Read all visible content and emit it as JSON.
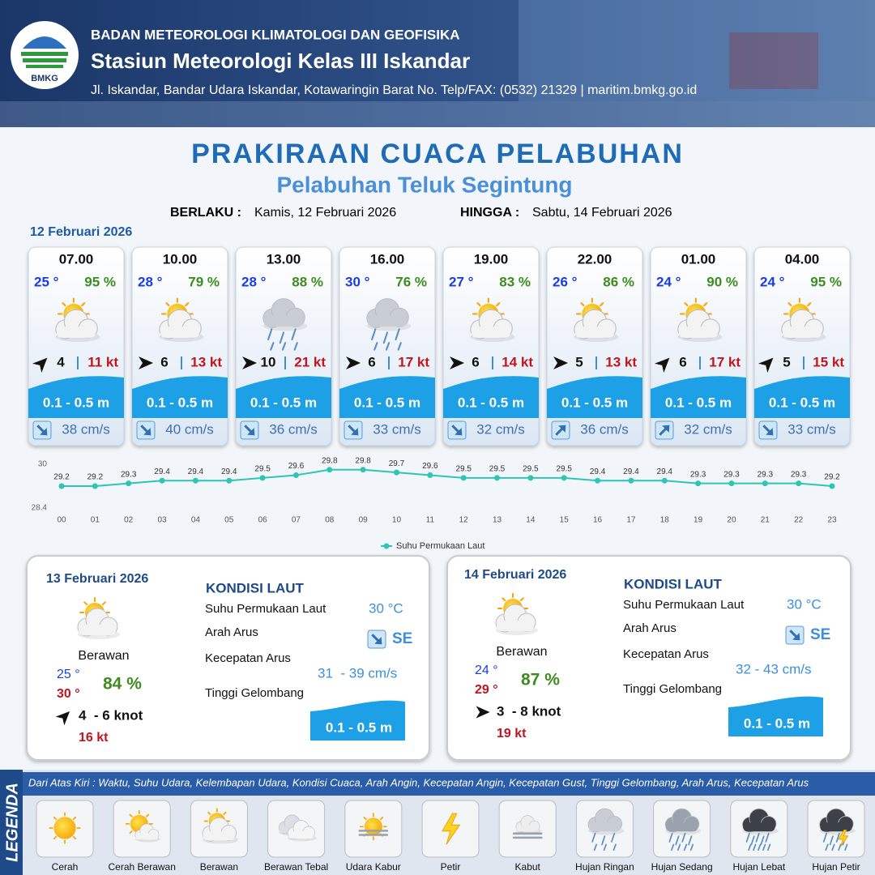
{
  "header": {
    "logo": "BMKG",
    "agency": "BADAN METEOROLOGI KLIMATOLOGI DAN GEOFISIKA",
    "station": "Stasiun Meteorologi Kelas III Iskandar",
    "address": "Jl. Iskandar, Bandar Udara Iskandar, Kotawaringin Barat No. Telp/FAX: (0532) 21329 | maritim.bmkg.go.id"
  },
  "title": "PRAKIRAAN CUACA PELABUHAN",
  "subtitle": "Pelabuhan Teluk Segintung",
  "validity": {
    "from_label": "BERLAKU :",
    "from": "Kamis, 12 Februari 2026",
    "to_label": "HINGGA :",
    "to": "Sabtu, 14 Februari 2026"
  },
  "today": {
    "date": "12 Februari 2026",
    "slots": [
      {
        "time": "07.00",
        "temp": "25 °",
        "humidity": "95 %",
        "condition": "Berawan",
        "wind_dir": "NE",
        "wind_speed": 4,
        "gust": "11 kt",
        "wave": "0.1 - 0.5 m",
        "current_dir": "SE",
        "current": "38 cm/s"
      },
      {
        "time": "10.00",
        "temp": "28 °",
        "humidity": "79 %",
        "condition": "Berawan",
        "wind_dir": "E",
        "wind_speed": 6,
        "gust": "13 kt",
        "wave": "0.1 - 0.5 m",
        "current_dir": "SE",
        "current": "40 cm/s"
      },
      {
        "time": "13.00",
        "temp": "28 °",
        "humidity": "88 %",
        "condition": "Hujan Ringan",
        "wind_dir": "E",
        "wind_speed": 10,
        "gust": "21 kt",
        "wave": "0.1 - 0.5 m",
        "current_dir": "SE",
        "current": "36 cm/s"
      },
      {
        "time": "16.00",
        "temp": "30 °",
        "humidity": "76 %",
        "condition": "Hujan Ringan",
        "wind_dir": "E",
        "wind_speed": 6,
        "gust": "17 kt",
        "wave": "0.1 - 0.5 m",
        "current_dir": "SE",
        "current": "33 cm/s"
      },
      {
        "time": "19.00",
        "temp": "27 °",
        "humidity": "83 %",
        "condition": "Berawan",
        "wind_dir": "E",
        "wind_speed": 6,
        "gust": "14 kt",
        "wave": "0.1 - 0.5 m",
        "current_dir": "SE",
        "current": "32 cm/s"
      },
      {
        "time": "22.00",
        "temp": "26 °",
        "humidity": "86 %",
        "condition": "Berawan",
        "wind_dir": "E",
        "wind_speed": 5,
        "gust": "13 kt",
        "wave": "0.1 - 0.5 m",
        "current_dir": "NE",
        "current": "36 cm/s"
      },
      {
        "time": "01.00",
        "temp": "24 °",
        "humidity": "90 %",
        "condition": "Berawan",
        "wind_dir": "NE",
        "wind_speed": 6,
        "gust": "17 kt",
        "wave": "0.1 - 0.5 m",
        "current_dir": "NE",
        "current": "32 cm/s"
      },
      {
        "time": "04.00",
        "temp": "24 °",
        "humidity": "95 %",
        "condition": "Berawan",
        "wind_dir": "NE",
        "wind_speed": 5,
        "gust": "15 kt",
        "wave": "0.1 - 0.5 m",
        "current_dir": "SE",
        "current": "33 cm/s"
      }
    ]
  },
  "chart_data": {
    "type": "line",
    "categories": [
      "00",
      "01",
      "02",
      "03",
      "04",
      "05",
      "06",
      "07",
      "08",
      "09",
      "10",
      "11",
      "12",
      "13",
      "14",
      "15",
      "16",
      "17",
      "18",
      "19",
      "20",
      "21",
      "22",
      "23"
    ],
    "series": [
      {
        "name": "Suhu Permukaan Laut",
        "color": "#2ec4b6",
        "values": [
          29.2,
          29.2,
          29.3,
          29.4,
          29.4,
          29.4,
          29.5,
          29.6,
          29.8,
          29.8,
          29.7,
          29.6,
          29.5,
          29.5,
          29.5,
          29.5,
          29.4,
          29.4,
          29.4,
          29.3,
          29.3,
          29.3,
          29.3,
          29.2
        ]
      }
    ],
    "ylim": [
      28.4,
      30
    ],
    "yticks": [
      28.4,
      30
    ],
    "legend": "bottom"
  },
  "outlook": [
    {
      "date": "13 Februari 2026",
      "condition": "Berawan",
      "temp_min": "25 °",
      "temp_max": "30 °",
      "humidity": "84 %",
      "wind_dir": "NE",
      "wind": "4  - 6 knot",
      "gust": "16 kt",
      "sea": {
        "title": "KONDISI LAUT",
        "sst_label": "Suhu Permukaan Laut",
        "sst": "30 °C",
        "current_dir_label": "Arah Arus",
        "current_dir": "SE",
        "current_speed_label": "Kecepatan Arus",
        "current_speed": "31  - 39 cm/s",
        "wave_label": "Tinggi Gelombang",
        "wave": "0.1 - 0.5 m"
      }
    },
    {
      "date": "14 Februari 2026",
      "condition": "Berawan",
      "temp_min": "24 °",
      "temp_max": "29 °",
      "humidity": "87 %",
      "wind_dir": "E",
      "wind": "3  - 8 knot",
      "gust": "19 kt",
      "sea": {
        "title": "KONDISI LAUT",
        "sst_label": "Suhu Permukaan Laut",
        "sst": "30 °C",
        "current_dir_label": "Arah Arus",
        "current_dir": "SE",
        "current_speed_label": "Kecepatan Arus",
        "current_speed": "32 - 43 cm/s",
        "wave_label": "Tinggi Gelombang",
        "wave": "0.1 - 0.5 m"
      }
    }
  ],
  "legend": {
    "title": "LEGENDA",
    "description": "Dari Atas Kiri : Waktu, Suhu Udara, Kelembapan Udara, Kondisi Cuaca, Arah Angin, Kecepatan Angin, Kecepatan Gust, Tinggi Gelombang, Arah Arus, Kecepatan Arus",
    "items": [
      "Cerah",
      "Cerah Berawan",
      "Berawan",
      "Berawan Tebal",
      "Udara Kabur",
      "Petir",
      "Kabut",
      "Hujan Ringan",
      "Hujan Sedang",
      "Hujan Lebat",
      "Hujan Petir"
    ]
  }
}
